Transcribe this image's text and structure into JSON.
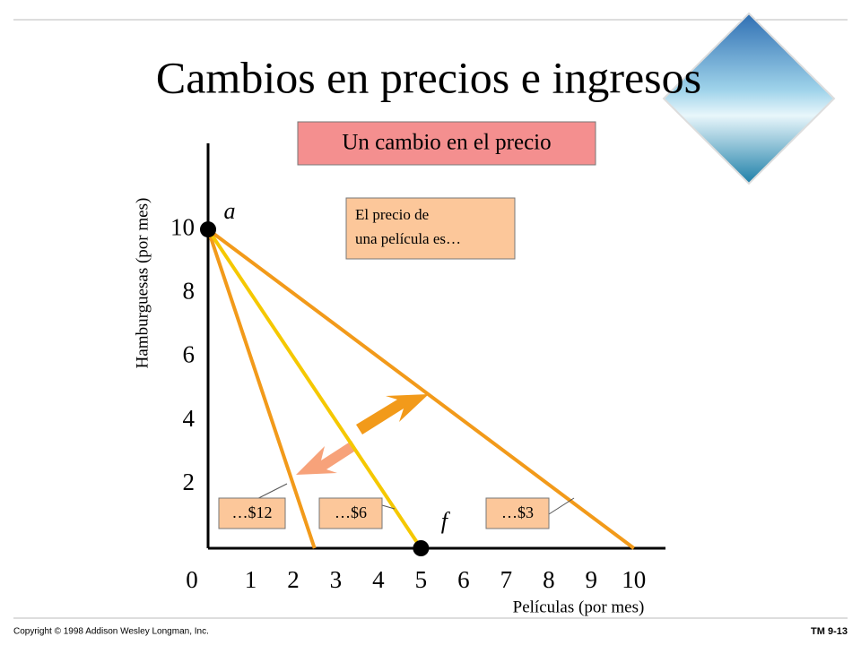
{
  "chart_data": {
    "type": "line",
    "title": "Cambios en precios e ingresos",
    "subtitle": "Un cambio en el precio",
    "annotation": [
      "El precio de",
      "una película es…"
    ],
    "x_label": "Películas (por mes)",
    "y_label": "Hamburguesas (por mes)",
    "xlim": [
      0,
      10.7
    ],
    "ylim": [
      0,
      12.7
    ],
    "xticks": [
      0,
      1,
      2,
      3,
      4,
      5,
      6,
      7,
      8,
      9,
      10
    ],
    "yticks": [
      2,
      4,
      6,
      8,
      10
    ],
    "series": [
      {
        "name": "…$12",
        "color": "#f29a1a",
        "x": [
          0,
          2.5
        ],
        "values": [
          10,
          0
        ]
      },
      {
        "name": "…$6",
        "color": "#f5c800",
        "x": [
          0,
          5
        ],
        "values": [
          10,
          0
        ]
      },
      {
        "name": "…$3",
        "color": "#f29a1a",
        "x": [
          0,
          10
        ],
        "values": [
          10,
          0
        ]
      }
    ],
    "points": [
      {
        "label": "a",
        "x": 0,
        "y": 10
      },
      {
        "label": "f",
        "x": 5,
        "y": 0
      }
    ]
  },
  "footer": {
    "copyright": "Copyright © 1998 Addison Wesley Longman, Inc.",
    "slide": "TM 9-13"
  }
}
